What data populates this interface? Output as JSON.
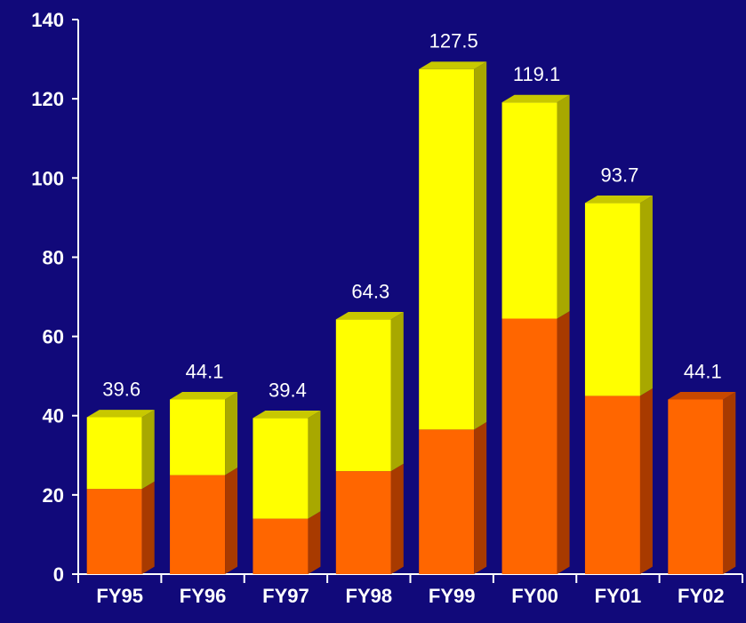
{
  "chart_data": {
    "type": "bar",
    "stacked": true,
    "categories": [
      "FY95",
      "FY96",
      "FY97",
      "FY98",
      "FY99",
      "FY00",
      "FY01",
      "FY02"
    ],
    "series": [
      {
        "values": [
          21.5,
          25.0,
          14.0,
          26.0,
          36.5,
          64.5,
          45.0,
          44.1
        ],
        "color": "#ff6600"
      },
      {
        "values": [
          18.1,
          19.1,
          25.4,
          38.3,
          91.0,
          54.6,
          48.7,
          0.0
        ],
        "color": "#ffff00"
      }
    ],
    "totals": [
      "39.6",
      "44.1",
      "39.4",
      "64.3",
      "127.5",
      "119.1",
      "93.7",
      "44.1"
    ],
    "ylim": [
      0,
      140
    ],
    "yticks": [
      "0",
      "20",
      "40",
      "60",
      "80",
      "100",
      "120",
      "140"
    ],
    "grid": false,
    "legend": "none",
    "style_3d": true,
    "colors": {
      "background": "#11097a",
      "axis": "#ffffff",
      "text": "#ffffff",
      "bottom_series": "#ff6600",
      "bottom_series_side": "#a83a00",
      "top_series": "#ffff00",
      "top_series_side": "#a8a800",
      "top_series_cap": "#c8c800",
      "bottom_series_cap": "#c84800"
    }
  }
}
